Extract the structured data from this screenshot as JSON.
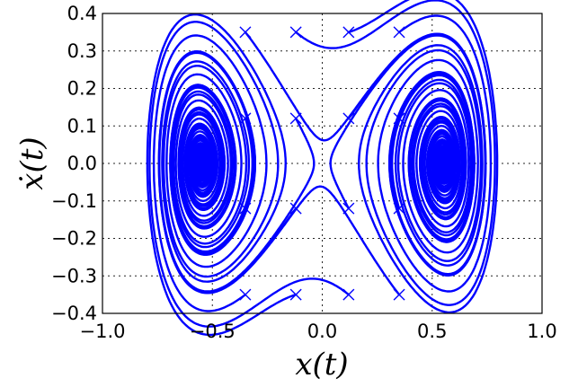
{
  "chart_data": {
    "type": "line",
    "title": "",
    "xlabel": "x(t)",
    "ylabel": "ẋ(t)",
    "xlim": [
      -1.0,
      1.0
    ],
    "ylim": [
      -0.4,
      0.4
    ],
    "grid": true,
    "xticks": [
      "−1.0",
      "−0.5",
      "0.0",
      "0.5",
      "1.0"
    ],
    "yticks": [
      "0.4",
      "0.3",
      "0.2",
      "0.1",
      "0.0",
      "−0.1",
      "−0.2",
      "−0.3",
      "−0.4"
    ],
    "xtick_values": [
      -1.0,
      -0.5,
      0.0,
      0.5,
      1.0
    ],
    "ytick_values": [
      0.4,
      0.3,
      0.2,
      0.1,
      0.0,
      -0.1,
      -0.2,
      -0.3,
      -0.4
    ],
    "line_color": "#0000ff",
    "marker": "x",
    "start_points": [
      [
        -0.35,
        0.35
      ],
      [
        -0.12,
        0.35
      ],
      [
        0.12,
        0.35
      ],
      [
        0.35,
        0.35
      ],
      [
        -0.35,
        0.12
      ],
      [
        -0.12,
        0.12
      ],
      [
        0.12,
        0.12
      ],
      [
        0.35,
        0.12
      ],
      [
        -0.35,
        -0.12
      ],
      [
        -0.12,
        -0.12
      ],
      [
        0.12,
        -0.12
      ],
      [
        0.35,
        -0.12
      ],
      [
        -0.35,
        -0.35
      ],
      [
        -0.12,
        -0.35
      ],
      [
        0.12,
        -0.35
      ],
      [
        0.35,
        -0.35
      ]
    ],
    "dynamics": "Duffing oscillator trajectories spiralling into the equilibria near x = ±0.55"
  }
}
